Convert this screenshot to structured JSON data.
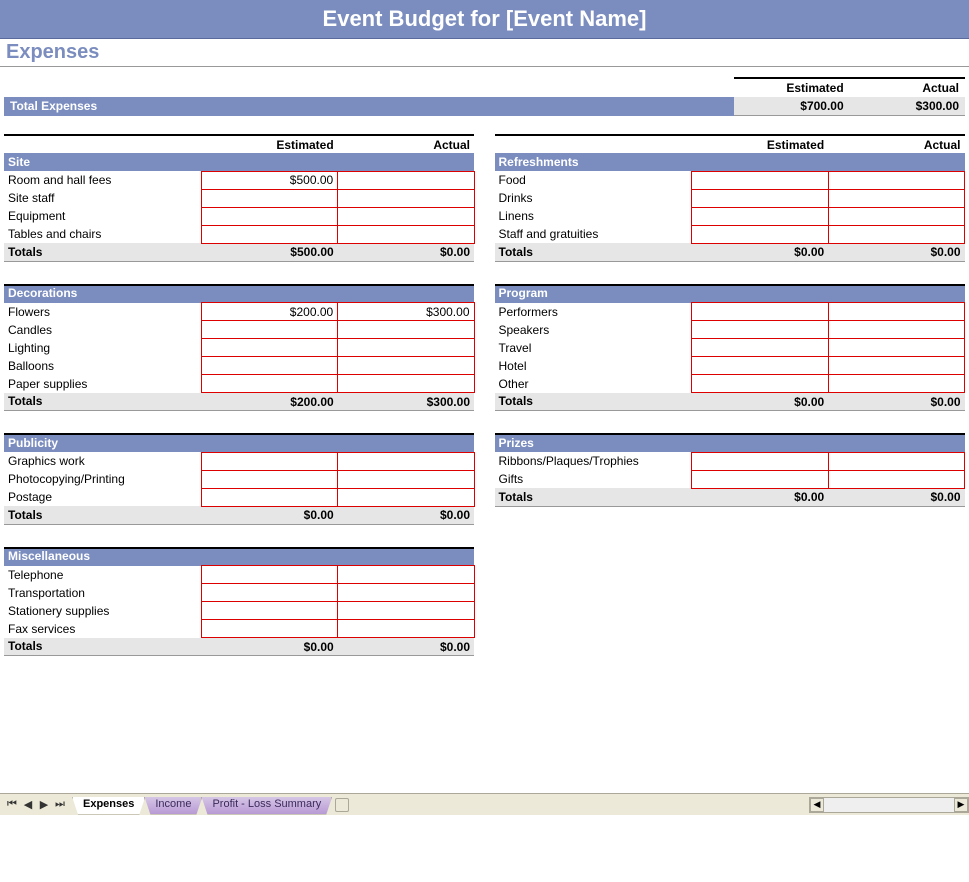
{
  "colors": {
    "header_bg": "#7b8dbf",
    "header_text": "#ffffff",
    "section_title": "#7b8dbf",
    "cell_border": "#d00000",
    "totals_bg": "#e6e6e6",
    "rule": "#000000",
    "tabstrip_bg": "#ece9d8",
    "inactive_tab_grad_top": "#d6c6e6",
    "inactive_tab_grad_bot": "#b89ad4"
  },
  "title": "Event Budget for [Event Name]",
  "section": "Expenses",
  "labels": {
    "estimated": "Estimated",
    "actual": "Actual",
    "total_expenses": "Total Expenses",
    "totals": "Totals"
  },
  "summary": {
    "estimated": "$700.00",
    "actual": "$300.00"
  },
  "left": [
    {
      "name": "Site",
      "rows": [
        {
          "label": "Room and hall fees",
          "estimated": "$500.00",
          "actual": ""
        },
        {
          "label": "Site staff",
          "estimated": "",
          "actual": ""
        },
        {
          "label": "Equipment",
          "estimated": "",
          "actual": ""
        },
        {
          "label": "Tables and chairs",
          "estimated": "",
          "actual": ""
        }
      ],
      "totals": {
        "estimated": "$500.00",
        "actual": "$0.00"
      }
    },
    {
      "name": "Decorations",
      "rows": [
        {
          "label": "Flowers",
          "estimated": "$200.00",
          "actual": "$300.00"
        },
        {
          "label": "Candles",
          "estimated": "",
          "actual": ""
        },
        {
          "label": "Lighting",
          "estimated": "",
          "actual": ""
        },
        {
          "label": "Balloons",
          "estimated": "",
          "actual": ""
        },
        {
          "label": "Paper supplies",
          "estimated": "",
          "actual": ""
        }
      ],
      "totals": {
        "estimated": "$200.00",
        "actual": "$300.00"
      }
    },
    {
      "name": "Publicity",
      "rows": [
        {
          "label": "Graphics work",
          "estimated": "",
          "actual": ""
        },
        {
          "label": "Photocopying/Printing",
          "estimated": "",
          "actual": ""
        },
        {
          "label": "Postage",
          "estimated": "",
          "actual": ""
        }
      ],
      "totals": {
        "estimated": "$0.00",
        "actual": "$0.00"
      }
    },
    {
      "name": "Miscellaneous",
      "rows": [
        {
          "label": "Telephone",
          "estimated": "",
          "actual": ""
        },
        {
          "label": "Transportation",
          "estimated": "",
          "actual": ""
        },
        {
          "label": "Stationery supplies",
          "estimated": "",
          "actual": ""
        },
        {
          "label": "Fax services",
          "estimated": "",
          "actual": ""
        }
      ],
      "totals": {
        "estimated": "$0.00",
        "actual": "$0.00"
      }
    }
  ],
  "right": [
    {
      "name": "Refreshments",
      "rows": [
        {
          "label": "Food",
          "estimated": "",
          "actual": ""
        },
        {
          "label": "Drinks",
          "estimated": "",
          "actual": ""
        },
        {
          "label": "Linens",
          "estimated": "",
          "actual": ""
        },
        {
          "label": "Staff and gratuities",
          "estimated": "",
          "actual": ""
        }
      ],
      "totals": {
        "estimated": "$0.00",
        "actual": "$0.00"
      }
    },
    {
      "name": "Program",
      "rows": [
        {
          "label": "Performers",
          "estimated": "",
          "actual": ""
        },
        {
          "label": "Speakers",
          "estimated": "",
          "actual": ""
        },
        {
          "label": "Travel",
          "estimated": "",
          "actual": ""
        },
        {
          "label": "Hotel",
          "estimated": "",
          "actual": ""
        },
        {
          "label": "Other",
          "estimated": "",
          "actual": ""
        }
      ],
      "totals": {
        "estimated": "$0.00",
        "actual": "$0.00"
      }
    },
    {
      "name": "Prizes",
      "rows": [
        {
          "label": "Ribbons/Plaques/Trophies",
          "estimated": "",
          "actual": ""
        },
        {
          "label": "Gifts",
          "estimated": "",
          "actual": ""
        }
      ],
      "totals": {
        "estimated": "$0.00",
        "actual": "$0.00"
      }
    }
  ],
  "tabs": [
    {
      "label": "Expenses",
      "active": true
    },
    {
      "label": "Income",
      "active": false
    },
    {
      "label": "Profit - Loss Summary",
      "active": false
    }
  ],
  "nav_glyphs": {
    "first": "⏮",
    "prev": "◀",
    "next": "▶",
    "last": "⏭",
    "left": "◀",
    "right": "▶"
  }
}
